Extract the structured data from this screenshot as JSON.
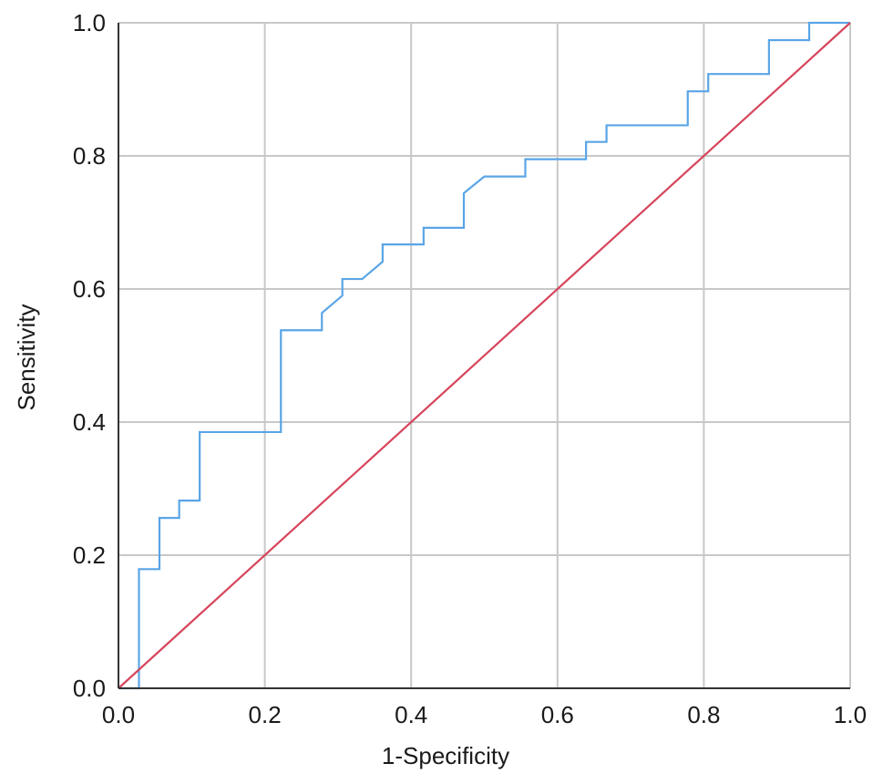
{
  "chart_data": {
    "type": "line",
    "xlabel": "1-Specificity",
    "ylabel": "Sensitivity",
    "xlim": [
      0,
      1
    ],
    "ylim": [
      0,
      1
    ],
    "grid": true,
    "x_ticks": [
      "0.0",
      "0.2",
      "0.4",
      "0.6",
      "0.8",
      "1.0"
    ],
    "y_ticks": [
      "0.0",
      "0.2",
      "0.4",
      "0.6",
      "0.8",
      "1.0"
    ],
    "series": [
      {
        "color": "#5aa5e6",
        "points": [
          [
            0.0,
            0.0
          ],
          [
            0.028,
            0.0
          ],
          [
            0.028,
            0.179
          ],
          [
            0.056,
            0.179
          ],
          [
            0.056,
            0.256
          ],
          [
            0.083,
            0.256
          ],
          [
            0.083,
            0.282
          ],
          [
            0.111,
            0.282
          ],
          [
            0.111,
            0.385
          ],
          [
            0.222,
            0.385
          ],
          [
            0.222,
            0.538
          ],
          [
            0.278,
            0.538
          ],
          [
            0.278,
            0.564
          ],
          [
            0.306,
            0.59
          ],
          [
            0.306,
            0.615
          ],
          [
            0.333,
            0.615
          ],
          [
            0.361,
            0.641
          ],
          [
            0.361,
            0.667
          ],
          [
            0.417,
            0.667
          ],
          [
            0.417,
            0.692
          ],
          [
            0.472,
            0.692
          ],
          [
            0.472,
            0.744
          ],
          [
            0.5,
            0.769
          ],
          [
            0.556,
            0.769
          ],
          [
            0.556,
            0.795
          ],
          [
            0.639,
            0.795
          ],
          [
            0.639,
            0.821
          ],
          [
            0.667,
            0.821
          ],
          [
            0.667,
            0.846
          ],
          [
            0.778,
            0.846
          ],
          [
            0.778,
            0.897
          ],
          [
            0.806,
            0.897
          ],
          [
            0.806,
            0.923
          ],
          [
            0.889,
            0.923
          ],
          [
            0.889,
            0.974
          ],
          [
            0.944,
            0.974
          ],
          [
            0.944,
            1.0
          ],
          [
            1.0,
            1.0
          ]
        ]
      },
      {
        "color": "#d6455c",
        "points": [
          [
            0.0,
            0.0
          ],
          [
            1.0,
            1.0
          ]
        ]
      }
    ]
  }
}
